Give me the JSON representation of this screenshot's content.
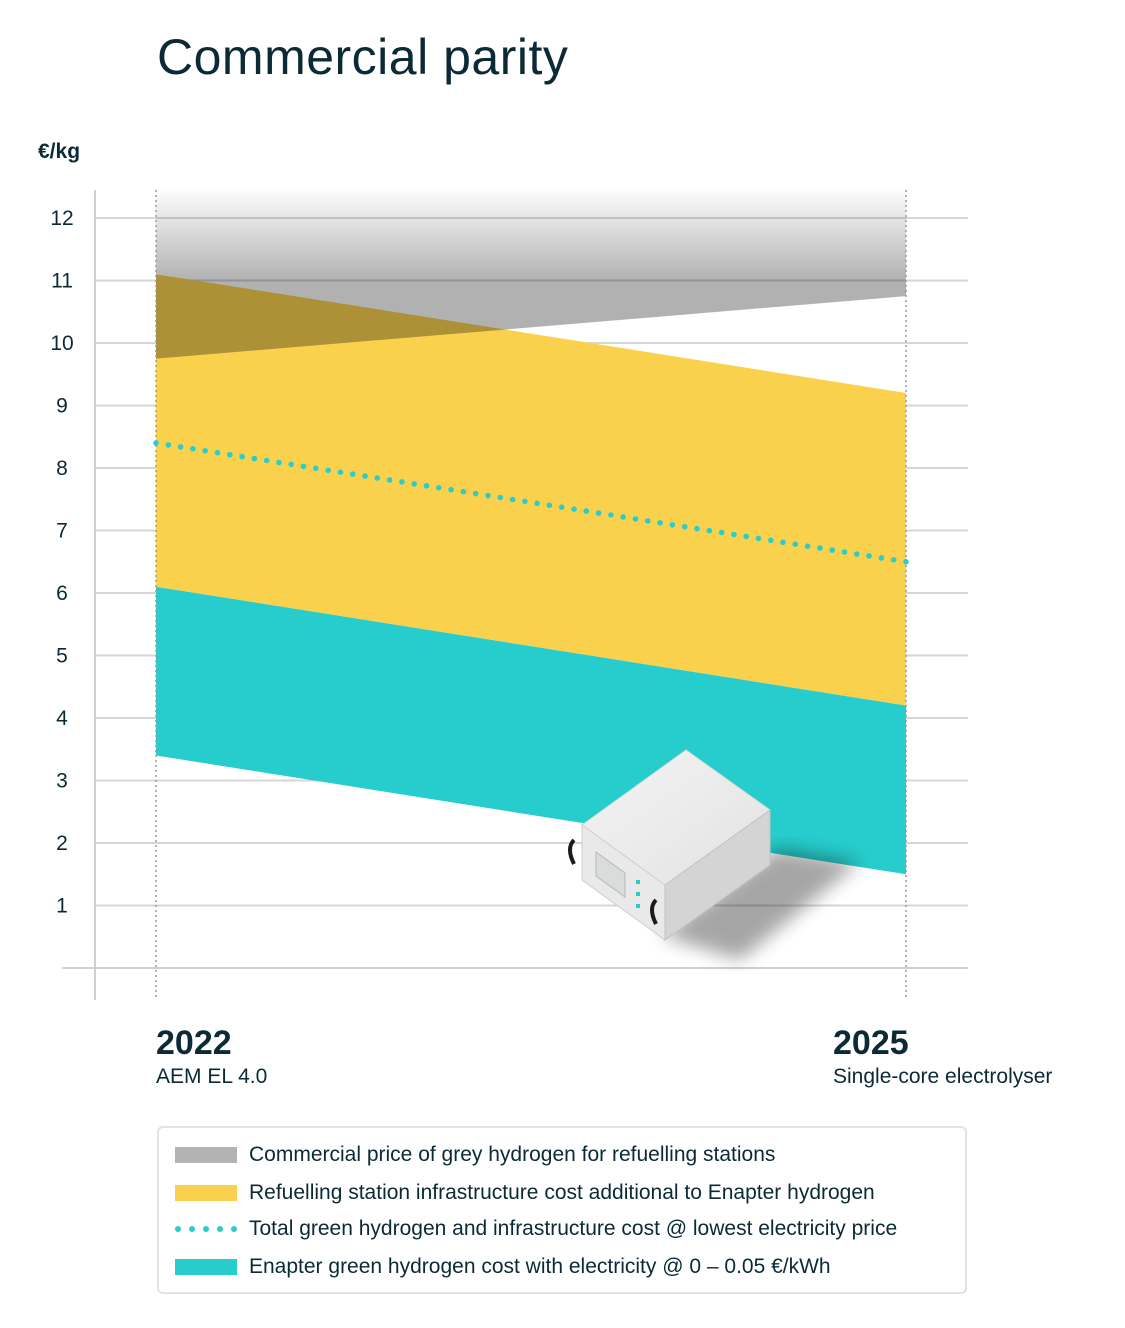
{
  "chart_data": {
    "type": "area",
    "title": "Commercial parity",
    "ylabel": "€/kg",
    "ylim": [
      0,
      12.5
    ],
    "yticks": [
      1,
      2,
      3,
      4,
      5,
      6,
      7,
      8,
      9,
      10,
      11,
      12
    ],
    "x": [
      {
        "year": "2022",
        "label": "AEM EL 4.0"
      },
      {
        "year": "2025",
        "label": "Single-core electrolyser"
      }
    ],
    "grid": true,
    "legend_placement": "bottom",
    "series": [
      {
        "key": "grey",
        "name": "Commercial price of grey hydrogen for refuelling stations",
        "kind": "band",
        "color": "#a6a6a6",
        "lower": [
          9.75,
          10.75
        ],
        "upper": [
          12.5,
          12.5
        ]
      },
      {
        "key": "infra",
        "name": "Refuelling station infrastructure cost additional to Enapter hydrogen",
        "kind": "band",
        "color": "#f9d14d",
        "lower": [
          6.1,
          4.2
        ],
        "upper": [
          11.1,
          9.2
        ]
      },
      {
        "key": "total",
        "name": "Total green hydrogen and infrastructure cost @ lowest electricity price",
        "kind": "dotted-line",
        "color": "#2bcdcc",
        "values": [
          8.4,
          6.5
        ]
      },
      {
        "key": "green",
        "name": "Enapter green hydrogen cost with electricity @ 0 – 0.05 €/kWh",
        "kind": "band",
        "color": "#27cdcc",
        "lower": [
          3.4,
          1.5
        ],
        "upper": [
          6.1,
          4.2
        ]
      }
    ]
  }
}
